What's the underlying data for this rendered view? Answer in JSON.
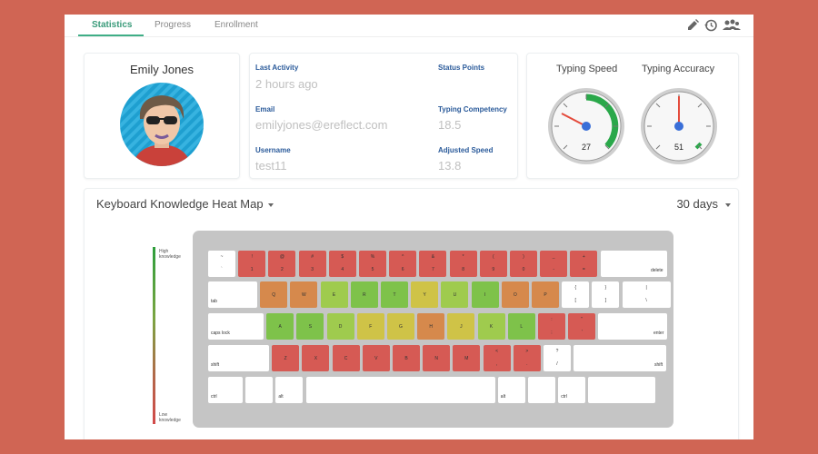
{
  "tabs": [
    {
      "label": "Statistics",
      "active": true
    },
    {
      "label": "Progress"
    },
    {
      "label": "Enrollment"
    }
  ],
  "toolbar": {
    "icons": [
      "pencil-icon",
      "history-icon",
      "users-icon"
    ]
  },
  "profile": {
    "name": "Emily Jones",
    "avatar": "avatar-icon"
  },
  "details": {
    "last_activity": {
      "label": "Last Activity",
      "value": "2 hours ago"
    },
    "email": {
      "label": "Email",
      "value": "emilyjones@ereflect.com"
    },
    "username": {
      "label": "Username",
      "value": "test11"
    },
    "status_points": {
      "label": "Status Points",
      "value": ""
    },
    "typing_competency": {
      "label": "Typing Competency",
      "value": "18.5"
    },
    "adjusted_speed": {
      "label": "Adjusted Speed",
      "value": "13.8"
    }
  },
  "gauges": [
    {
      "title": "Typing Speed",
      "value": "27"
    },
    {
      "title": "Typing Accuracy",
      "value": "51"
    }
  ],
  "heatmap": {
    "title": "Keyboard Knowledge Heat Map",
    "period": "30 days",
    "legend_high": "High\nknowledge",
    "legend_low": "Low\nknowledge",
    "colors": {
      "r": "#d65a54",
      "o": "#d6894c",
      "y": "#cfc347",
      "lg": "#9fcb4e",
      "g": "#7ec24a",
      "w": "#ffffff"
    },
    "keys": {
      "row1": [
        {
          "t": "~",
          "b": "`",
          "c": "w"
        },
        {
          "t": "!",
          "b": "1",
          "c": "r"
        },
        {
          "t": "@",
          "b": "2",
          "c": "r"
        },
        {
          "t": "#",
          "b": "3",
          "c": "r"
        },
        {
          "t": "$",
          "b": "4",
          "c": "r"
        },
        {
          "t": "%",
          "b": "5",
          "c": "r"
        },
        {
          "t": "^",
          "b": "6",
          "c": "r"
        },
        {
          "t": "&",
          "b": "7",
          "c": "r"
        },
        {
          "t": "*",
          "b": "8",
          "c": "r"
        },
        {
          "t": "(",
          "b": "9",
          "c": "r"
        },
        {
          "t": ")",
          "b": "0",
          "c": "r"
        },
        {
          "t": "_",
          "b": "-",
          "c": "r"
        },
        {
          "t": "+",
          "b": "=",
          "c": "r"
        },
        {
          "label": "delete",
          "c": "w"
        }
      ],
      "row2": [
        {
          "label": "tab",
          "c": "w"
        },
        {
          "k": "Q",
          "c": "o"
        },
        {
          "k": "W",
          "c": "o"
        },
        {
          "k": "E",
          "c": "lg"
        },
        {
          "k": "R",
          "c": "g"
        },
        {
          "k": "T",
          "c": "g"
        },
        {
          "k": "Y",
          "c": "y"
        },
        {
          "k": "U",
          "c": "lg"
        },
        {
          "k": "I",
          "c": "g"
        },
        {
          "k": "O",
          "c": "o"
        },
        {
          "k": "P",
          "c": "o"
        },
        {
          "t": "{",
          "b": "[",
          "c": "w"
        },
        {
          "t": "}",
          "b": "]",
          "c": "w"
        },
        {
          "t": "|",
          "b": "\\",
          "c": "w"
        }
      ],
      "row3": [
        {
          "label": "caps lock",
          "c": "w"
        },
        {
          "k": "A",
          "c": "g"
        },
        {
          "k": "S",
          "c": "g"
        },
        {
          "k": "D",
          "c": "lg"
        },
        {
          "k": "F",
          "c": "y"
        },
        {
          "k": "G",
          "c": "y"
        },
        {
          "k": "H",
          "c": "o"
        },
        {
          "k": "J",
          "c": "y"
        },
        {
          "k": "K",
          "c": "lg"
        },
        {
          "k": "L",
          "c": "g"
        },
        {
          "t": ":",
          "b": ";",
          "c": "r"
        },
        {
          "t": "\"",
          "b": "'",
          "c": "r"
        },
        {
          "label": "enter",
          "c": "w"
        }
      ],
      "row4": [
        {
          "label": "shift",
          "c": "w"
        },
        {
          "k": "Z",
          "c": "r"
        },
        {
          "k": "X",
          "c": "r"
        },
        {
          "k": "C",
          "c": "r"
        },
        {
          "k": "V",
          "c": "r"
        },
        {
          "k": "B",
          "c": "r"
        },
        {
          "k": "N",
          "c": "r"
        },
        {
          "k": "M",
          "c": "r"
        },
        {
          "t": "<",
          "b": ",",
          "c": "r"
        },
        {
          "t": ">",
          "b": ".",
          "c": "r"
        },
        {
          "t": "?",
          "b": "/",
          "c": "w"
        },
        {
          "label": "shift",
          "c": "w"
        }
      ],
      "row5": [
        {
          "label": "ctrl",
          "c": "w"
        },
        {
          "label": "",
          "c": "w"
        },
        {
          "label": "alt",
          "c": "w"
        },
        {
          "label": "",
          "c": "w"
        },
        {
          "label": "alt",
          "c": "w"
        },
        {
          "label": "",
          "c": "w"
        },
        {
          "label": "ctrl",
          "c": "w"
        },
        {
          "label": "",
          "c": "w"
        }
      ]
    }
  }
}
